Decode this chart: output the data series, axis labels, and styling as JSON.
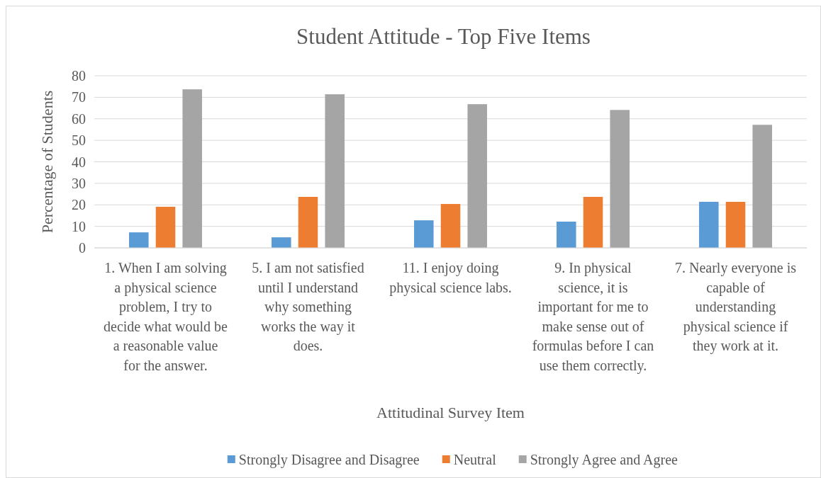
{
  "chart_data": {
    "type": "bar",
    "title": "Student Attitude - Top Five Items",
    "xlabel": "Attitudinal Survey Item",
    "ylabel": "Percentage of Students",
    "categories": [
      "1. When I am solving a physical science problem, I try to decide what would be a reasonable value for the answer.",
      "5. I am not satisfied until I understand why something works the way it does.",
      "11. I enjoy doing physical science labs.",
      "9. In physical science, it is important for me to make sense out of formulas before I can use them correctly.",
      "7. Nearly everyone is capable of understanding physical science if they work at it."
    ],
    "series": [
      {
        "name": "Strongly Disagree and Disagree",
        "color": "#5b9bd5",
        "values": [
          7.2,
          4.9,
          12.8,
          12.2,
          21.4
        ]
      },
      {
        "name": "Neutral",
        "color": "#ed7d31",
        "values": [
          19.1,
          23.7,
          20.4,
          23.7,
          21.4
        ]
      },
      {
        "name": "Strongly Agree and Agree",
        "color": "#a5a5a5",
        "values": [
          73.7,
          71.4,
          66.8,
          64.1,
          57.2
        ]
      }
    ],
    "ylim": [
      0,
      80
    ],
    "yticks": [
      0,
      10,
      20,
      30,
      40,
      50,
      60,
      70,
      80
    ],
    "grid": "y",
    "legend": "bottom"
  }
}
